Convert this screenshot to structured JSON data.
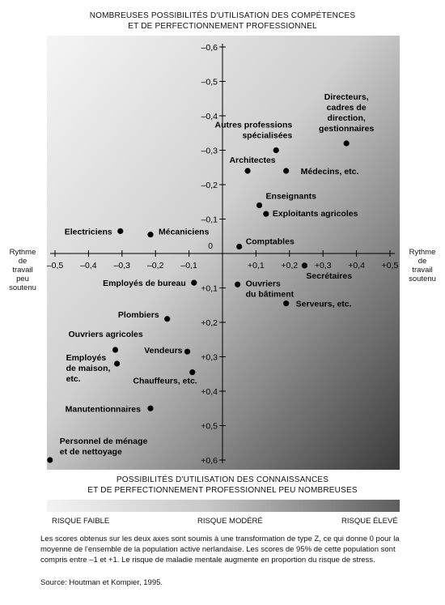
{
  "top_title_line1": "NOMBREUSES POSSIBILITÉS D'UTILISATION DES COMPÉTENCES",
  "top_title_line2": "ET DE PERFECTIONNEMENT PROFESSIONNEL",
  "bottom_title_line1": "POSSIBILITÉS D'UTILISATION DES CONNAISSANCES",
  "bottom_title_line2": "ET DE PERFECTIONNEMENT PROFESSIONNEL PEU NOMBREUSES",
  "left_label": [
    "Rythme",
    "de",
    "travail",
    "peu",
    "soutenu"
  ],
  "right_label": [
    "Rythme",
    "de",
    "travail",
    "soutenu"
  ],
  "risk_labels": {
    "low": "RISQUE FAIBLE",
    "mid": "RISQUE MODÉRÉ",
    "high": "RISQUE ÉLEVÉ"
  },
  "note": "Les scores obtenus sur les deux axes sont soumis à une transformation de type Z, ce qui donne 0 pour la moyenne de l'ensemble de la population active nerlandaise. Les scores de 95% de cette population sont compris entre –1 et +1. Le risque de maladie mentale augmente en proportion du risque de stress.",
  "source": "Source: Houtman et Kompier, 1995.",
  "colors": {
    "point": "#000000",
    "gradient_light": "#f5f5f5",
    "gradient_dark": "#3a3a3a"
  },
  "chart_data": {
    "type": "scatter",
    "xlim": [
      -0.5,
      0.5
    ],
    "ylim": [
      -0.6,
      0.6
    ],
    "y_inverted": true,
    "grid": false,
    "x_ticks": [
      {
        "v": -0.5,
        "label": "–0,5"
      },
      {
        "v": -0.4,
        "label": "–0,4"
      },
      {
        "v": -0.3,
        "label": "–0,3"
      },
      {
        "v": -0.2,
        "label": "–0,2"
      },
      {
        "v": -0.1,
        "label": "–0,1"
      },
      {
        "v": 0.1,
        "label": "+0,1"
      },
      {
        "v": 0.2,
        "label": "+0,2"
      },
      {
        "v": 0.3,
        "label": "+0,3"
      },
      {
        "v": 0.4,
        "label": "+0,4"
      },
      {
        "v": 0.5,
        "label": "+0,5"
      }
    ],
    "y_ticks": [
      {
        "v": -0.6,
        "label": "–0,6"
      },
      {
        "v": -0.5,
        "label": "–0,5"
      },
      {
        "v": -0.4,
        "label": "–0,4"
      },
      {
        "v": -0.3,
        "label": "–0,3"
      },
      {
        "v": -0.2,
        "label": "–0,2"
      },
      {
        "v": -0.1,
        "label": "–0,1"
      },
      {
        "v": 0.1,
        "label": "+0,1"
      },
      {
        "v": 0.2,
        "label": "+0,2"
      },
      {
        "v": 0.3,
        "label": "+0,3"
      },
      {
        "v": 0.4,
        "label": "+0,4"
      },
      {
        "v": 0.5,
        "label": "+0,5"
      },
      {
        "v": 0.6,
        "label": "+0,6"
      }
    ],
    "origin_label": "0",
    "points": [
      {
        "label": [
          "Directeurs,",
          "cadres de",
          "direction,",
          "gestionnaires"
        ],
        "x": 0.37,
        "y": -0.32,
        "anchor": "middle",
        "dx": 0,
        "dy": -54
      },
      {
        "label": [
          "Autres professions",
          "spécialisées"
        ],
        "x": 0.16,
        "y": -0.3,
        "anchor": "end",
        "dx": 20,
        "dy": -28
      },
      {
        "label": [
          "Architectes"
        ],
        "x": 0.075,
        "y": -0.24,
        "anchor": "middle",
        "dx": 6,
        "dy": -10
      },
      {
        "label": [
          "Médecins, etc."
        ],
        "x": 0.19,
        "y": -0.24,
        "anchor": "start",
        "dx": 18,
        "dy": 4
      },
      {
        "label": [
          "Enseignants"
        ],
        "x": 0.11,
        "y": -0.14,
        "anchor": "start",
        "dx": 8,
        "dy": -8
      },
      {
        "label": [
          "Exploitants agricoles"
        ],
        "x": 0.13,
        "y": -0.115,
        "anchor": "start",
        "dx": 8,
        "dy": 3
      },
      {
        "label": [
          "Electriciens"
        ],
        "x": -0.305,
        "y": -0.065,
        "anchor": "end",
        "dx": -10,
        "dy": 4
      },
      {
        "label": [
          "Mécaniciens"
        ],
        "x": -0.215,
        "y": -0.055,
        "anchor": "start",
        "dx": 10,
        "dy": 0
      },
      {
        "label": [
          "Comptables"
        ],
        "x": 0.05,
        "y": -0.02,
        "anchor": "start",
        "dx": 8,
        "dy": -3
      },
      {
        "label": [
          "Secrétaires"
        ],
        "x": 0.245,
        "y": 0.035,
        "anchor": "start",
        "dx": 2,
        "dy": 16
      },
      {
        "label": [
          "Employés de bureau"
        ],
        "x": -0.085,
        "y": 0.085,
        "anchor": "end",
        "dx": -10,
        "dy": 4
      },
      {
        "label": [
          "Ouvriers",
          "du bâtiment"
        ],
        "x": 0.045,
        "y": 0.09,
        "anchor": "start",
        "dx": 10,
        "dy": 2
      },
      {
        "label": [
          "Serveurs, etc."
        ],
        "x": 0.19,
        "y": 0.145,
        "anchor": "start",
        "dx": 12,
        "dy": 4
      },
      {
        "label": [
          "Plombiers"
        ],
        "x": -0.165,
        "y": 0.19,
        "anchor": "end",
        "dx": -10,
        "dy": -2
      },
      {
        "label": [
          "Ouvriers agricoles"
        ],
        "x": -0.32,
        "y": 0.28,
        "anchor": "start",
        "dx": -58,
        "dy": -16
      },
      {
        "label": [
          "Vendeurs"
        ],
        "x": -0.105,
        "y": 0.285,
        "anchor": "end",
        "dx": -6,
        "dy": 2
      },
      {
        "label": [
          "Employés",
          "de maison,",
          "etc."
        ],
        "x": -0.315,
        "y": 0.32,
        "anchor": "start",
        "dx": -63,
        "dy": -4
      },
      {
        "label": [
          "Chauffeurs, etc."
        ],
        "x": -0.09,
        "y": 0.345,
        "anchor": "end",
        "dx": 6,
        "dy": 14
      },
      {
        "label": [
          "Manutentionnaires"
        ],
        "x": -0.215,
        "y": 0.45,
        "anchor": "end",
        "dx": -12,
        "dy": 4
      },
      {
        "label": [
          "Personnel de ménage",
          "et de nettoyage"
        ],
        "x": -0.515,
        "y": 0.6,
        "anchor": "start",
        "dx": 12,
        "dy": -20
      }
    ]
  }
}
